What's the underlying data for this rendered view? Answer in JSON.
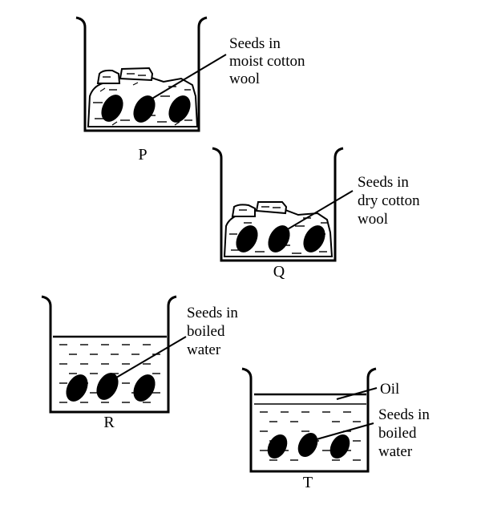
{
  "beakers": [
    {
      "id": "P",
      "caption": "P",
      "contents": "cotton",
      "label_lines": [
        "Seeds in",
        "moist cotton",
        "wool"
      ]
    },
    {
      "id": "Q",
      "caption": "Q",
      "contents": "cotton",
      "label_lines": [
        "Seeds in",
        "dry cotton",
        "wool"
      ]
    },
    {
      "id": "R",
      "caption": "R",
      "contents": "water",
      "label_lines": [
        "Seeds in",
        "boiled",
        "water"
      ]
    },
    {
      "id": "T",
      "caption": "T",
      "contents": "water-oil",
      "label_lines": [
        "Seeds in",
        "boiled",
        "water"
      ],
      "oil_label": "Oil"
    }
  ]
}
